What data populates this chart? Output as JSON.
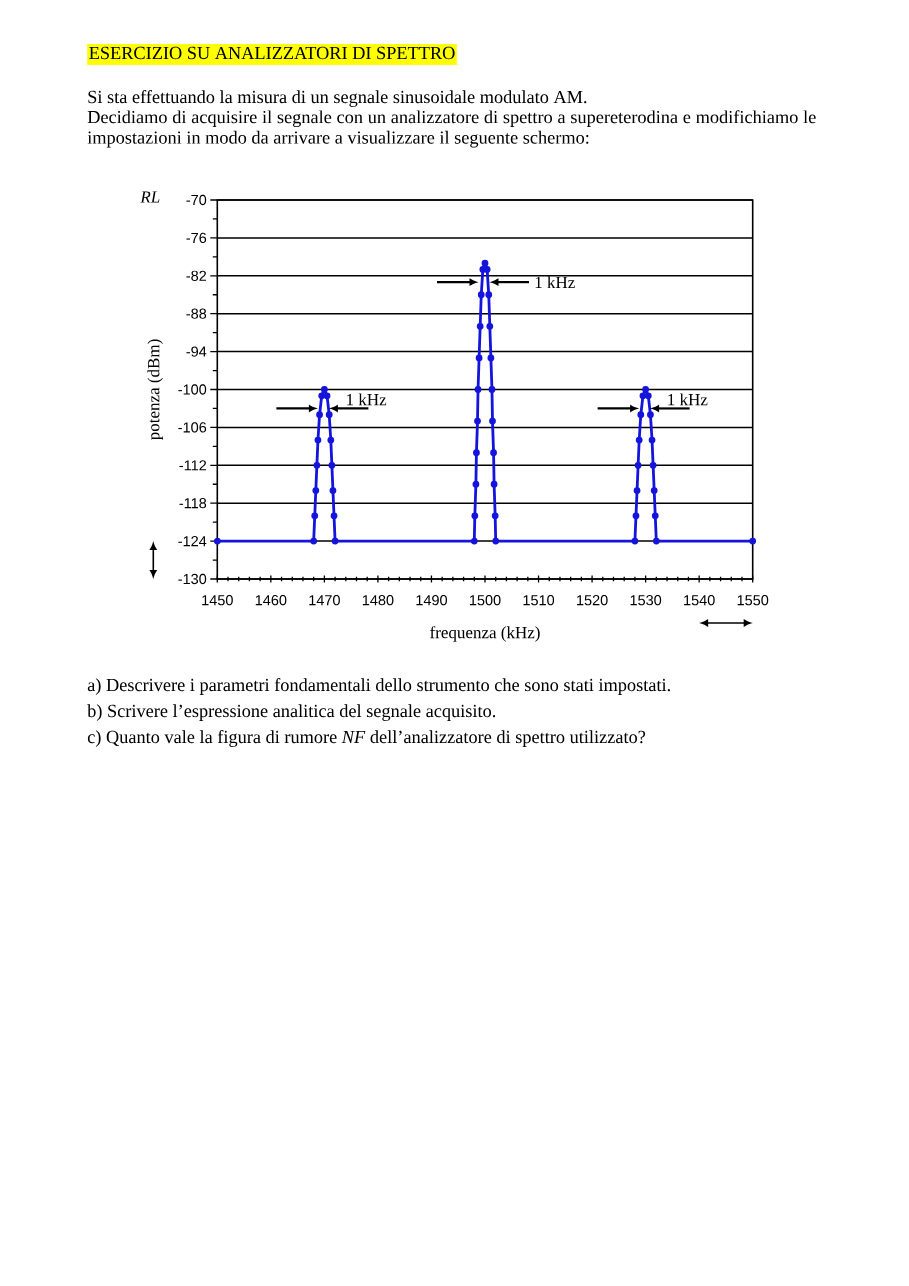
{
  "chart_data": {
    "type": "line",
    "title": "ESERCIZIO SU ANALIZZATORI DI SPETTRO",
    "subtitle": "Si sta effettuando la misura di un segnale sinusoidale modulato AM.",
    "xlabel": "frequenza (kHz)",
    "ylabel": "potenza (dBm)",
    "annotations": [
      "Decidiamo di acquisire il segnale con un analizzatore di spettro a supereterodina e modifichiamo le impostazioni in modo da arrivare a visualizzare il seguente schermo:",
      "RL",
      {
        "text": "1 kHz",
        "x": 1470,
        "y": -103
      },
      {
        "text": "1 kHz",
        "x": 1500,
        "y": -83
      },
      {
        "text": "1 kHz",
        "x": 1530,
        "y": -103
      },
      "a) Descrivere i parametri fondamentali dello strumento che sono stati impostati.",
      "b) Scrivere l’espressione analitica del segnale acquisito.",
      "c) Quanto vale la figura di rumore *NF* dell’analizzatore di spettro utilizzato?"
    ],
    "x": [
      1450,
      1468,
      1468.2,
      1468.4,
      1468.6,
      1468.8,
      1469.1,
      1469.5,
      1470,
      1470.5,
      1470.9,
      1471.2,
      1471.4,
      1471.6,
      1471.8,
      1472,
      1498,
      1498.1,
      1498.3,
      1498.4,
      1498.6,
      1498.7,
      1498.9,
      1499.1,
      1499.3,
      1499.6,
      1500,
      1500.4,
      1500.7,
      1500.9,
      1501.1,
      1501.3,
      1501.4,
      1501.6,
      1501.7,
      1501.9,
      1502,
      1528,
      1528.2,
      1528.4,
      1528.6,
      1528.8,
      1529.1,
      1529.5,
      1530,
      1530.5,
      1530.9,
      1531.2,
      1531.4,
      1531.6,
      1531.8,
      1532,
      1550
    ],
    "series": [
      {
        "color": "#1414dc",
        "values": [
          -124,
          -124,
          -120,
          -116,
          -112,
          -108,
          -104,
          -101,
          -100,
          -101,
          -104,
          -108,
          -112,
          -116,
          -120,
          -124,
          -124,
          -120,
          -115,
          -110,
          -105,
          -100,
          -95,
          -90,
          -85,
          -81,
          -80,
          -81,
          -85,
          -90,
          -95,
          -100,
          -105,
          -110,
          -115,
          -120,
          -124,
          -124,
          -120,
          -116,
          -112,
          -108,
          -104,
          -101,
          -100,
          -101,
          -104,
          -108,
          -112,
          -116,
          -120,
          -124,
          -124
        ]
      }
    ],
    "xlim": [
      1450,
      1550
    ],
    "ylim": [
      -130,
      -70
    ],
    "xticks": [
      1450,
      {
        "value": 1452,
        "label": null
      },
      {
        "value": 1454,
        "label": null
      },
      {
        "value": 1456,
        "label": null
      },
      {
        "value": 1458,
        "label": null
      },
      1460,
      {
        "value": 1462,
        "label": null
      },
      {
        "value": 1464,
        "label": null
      },
      {
        "value": 1466,
        "label": null
      },
      {
        "value": 1468,
        "label": null
      },
      1470,
      {
        "value": 1472,
        "label": null
      },
      {
        "value": 1474,
        "label": null
      },
      {
        "value": 1476,
        "label": null
      },
      {
        "value": 1478,
        "label": null
      },
      1480,
      {
        "value": 1482,
        "label": null
      },
      {
        "value": 1484,
        "label": null
      },
      {
        "value": 1486,
        "label": null
      },
      {
        "value": 1488,
        "label": null
      },
      1490,
      {
        "value": 1492,
        "label": null
      },
      {
        "value": 1494,
        "label": null
      },
      {
        "value": 1496,
        "label": null
      },
      {
        "value": 1498,
        "label": null
      },
      1500,
      {
        "value": 1502,
        "label": null
      },
      {
        "value": 1504,
        "label": null
      },
      {
        "value": 1506,
        "label": null
      },
      {
        "value": 1508,
        "label": null
      },
      1510,
      {
        "value": 1512,
        "label": null
      },
      {
        "value": 1514,
        "label": null
      },
      {
        "value": 1516,
        "label": null
      },
      {
        "value": 1518,
        "label": null
      },
      1520,
      {
        "value": 1522,
        "label": null
      },
      {
        "value": 1524,
        "label": null
      },
      {
        "value": 1526,
        "label": null
      },
      {
        "value": 1528,
        "label": null
      },
      1530,
      {
        "value": 1532,
        "label": null
      },
      {
        "value": 1534,
        "label": null
      },
      {
        "value": 1536,
        "label": null
      },
      {
        "value": 1538,
        "label": null
      },
      1540,
      {
        "value": 1542,
        "label": null
      },
      {
        "value": 1544,
        "label": null
      },
      {
        "value": 1546,
        "label": null
      },
      {
        "value": 1548,
        "label": null
      },
      1550
    ],
    "yticks": [
      -130,
      {
        "value": -127,
        "label": null
      },
      -124,
      {
        "value": -121,
        "label": null
      },
      -118,
      {
        "value": -115,
        "label": null
      },
      -112,
      {
        "value": -109,
        "label": null
      },
      -106,
      {
        "value": -103,
        "label": null
      },
      -100,
      {
        "value": -97,
        "label": null
      },
      -94,
      {
        "value": -91,
        "label": null
      },
      -88,
      {
        "value": -85,
        "label": null
      },
      -82,
      {
        "value": -79,
        "label": null
      },
      -76,
      {
        "value": -73,
        "label": null
      },
      -70
    ],
    "grid": "y",
    "marker": "circle",
    "line_style": "solid"
  }
}
